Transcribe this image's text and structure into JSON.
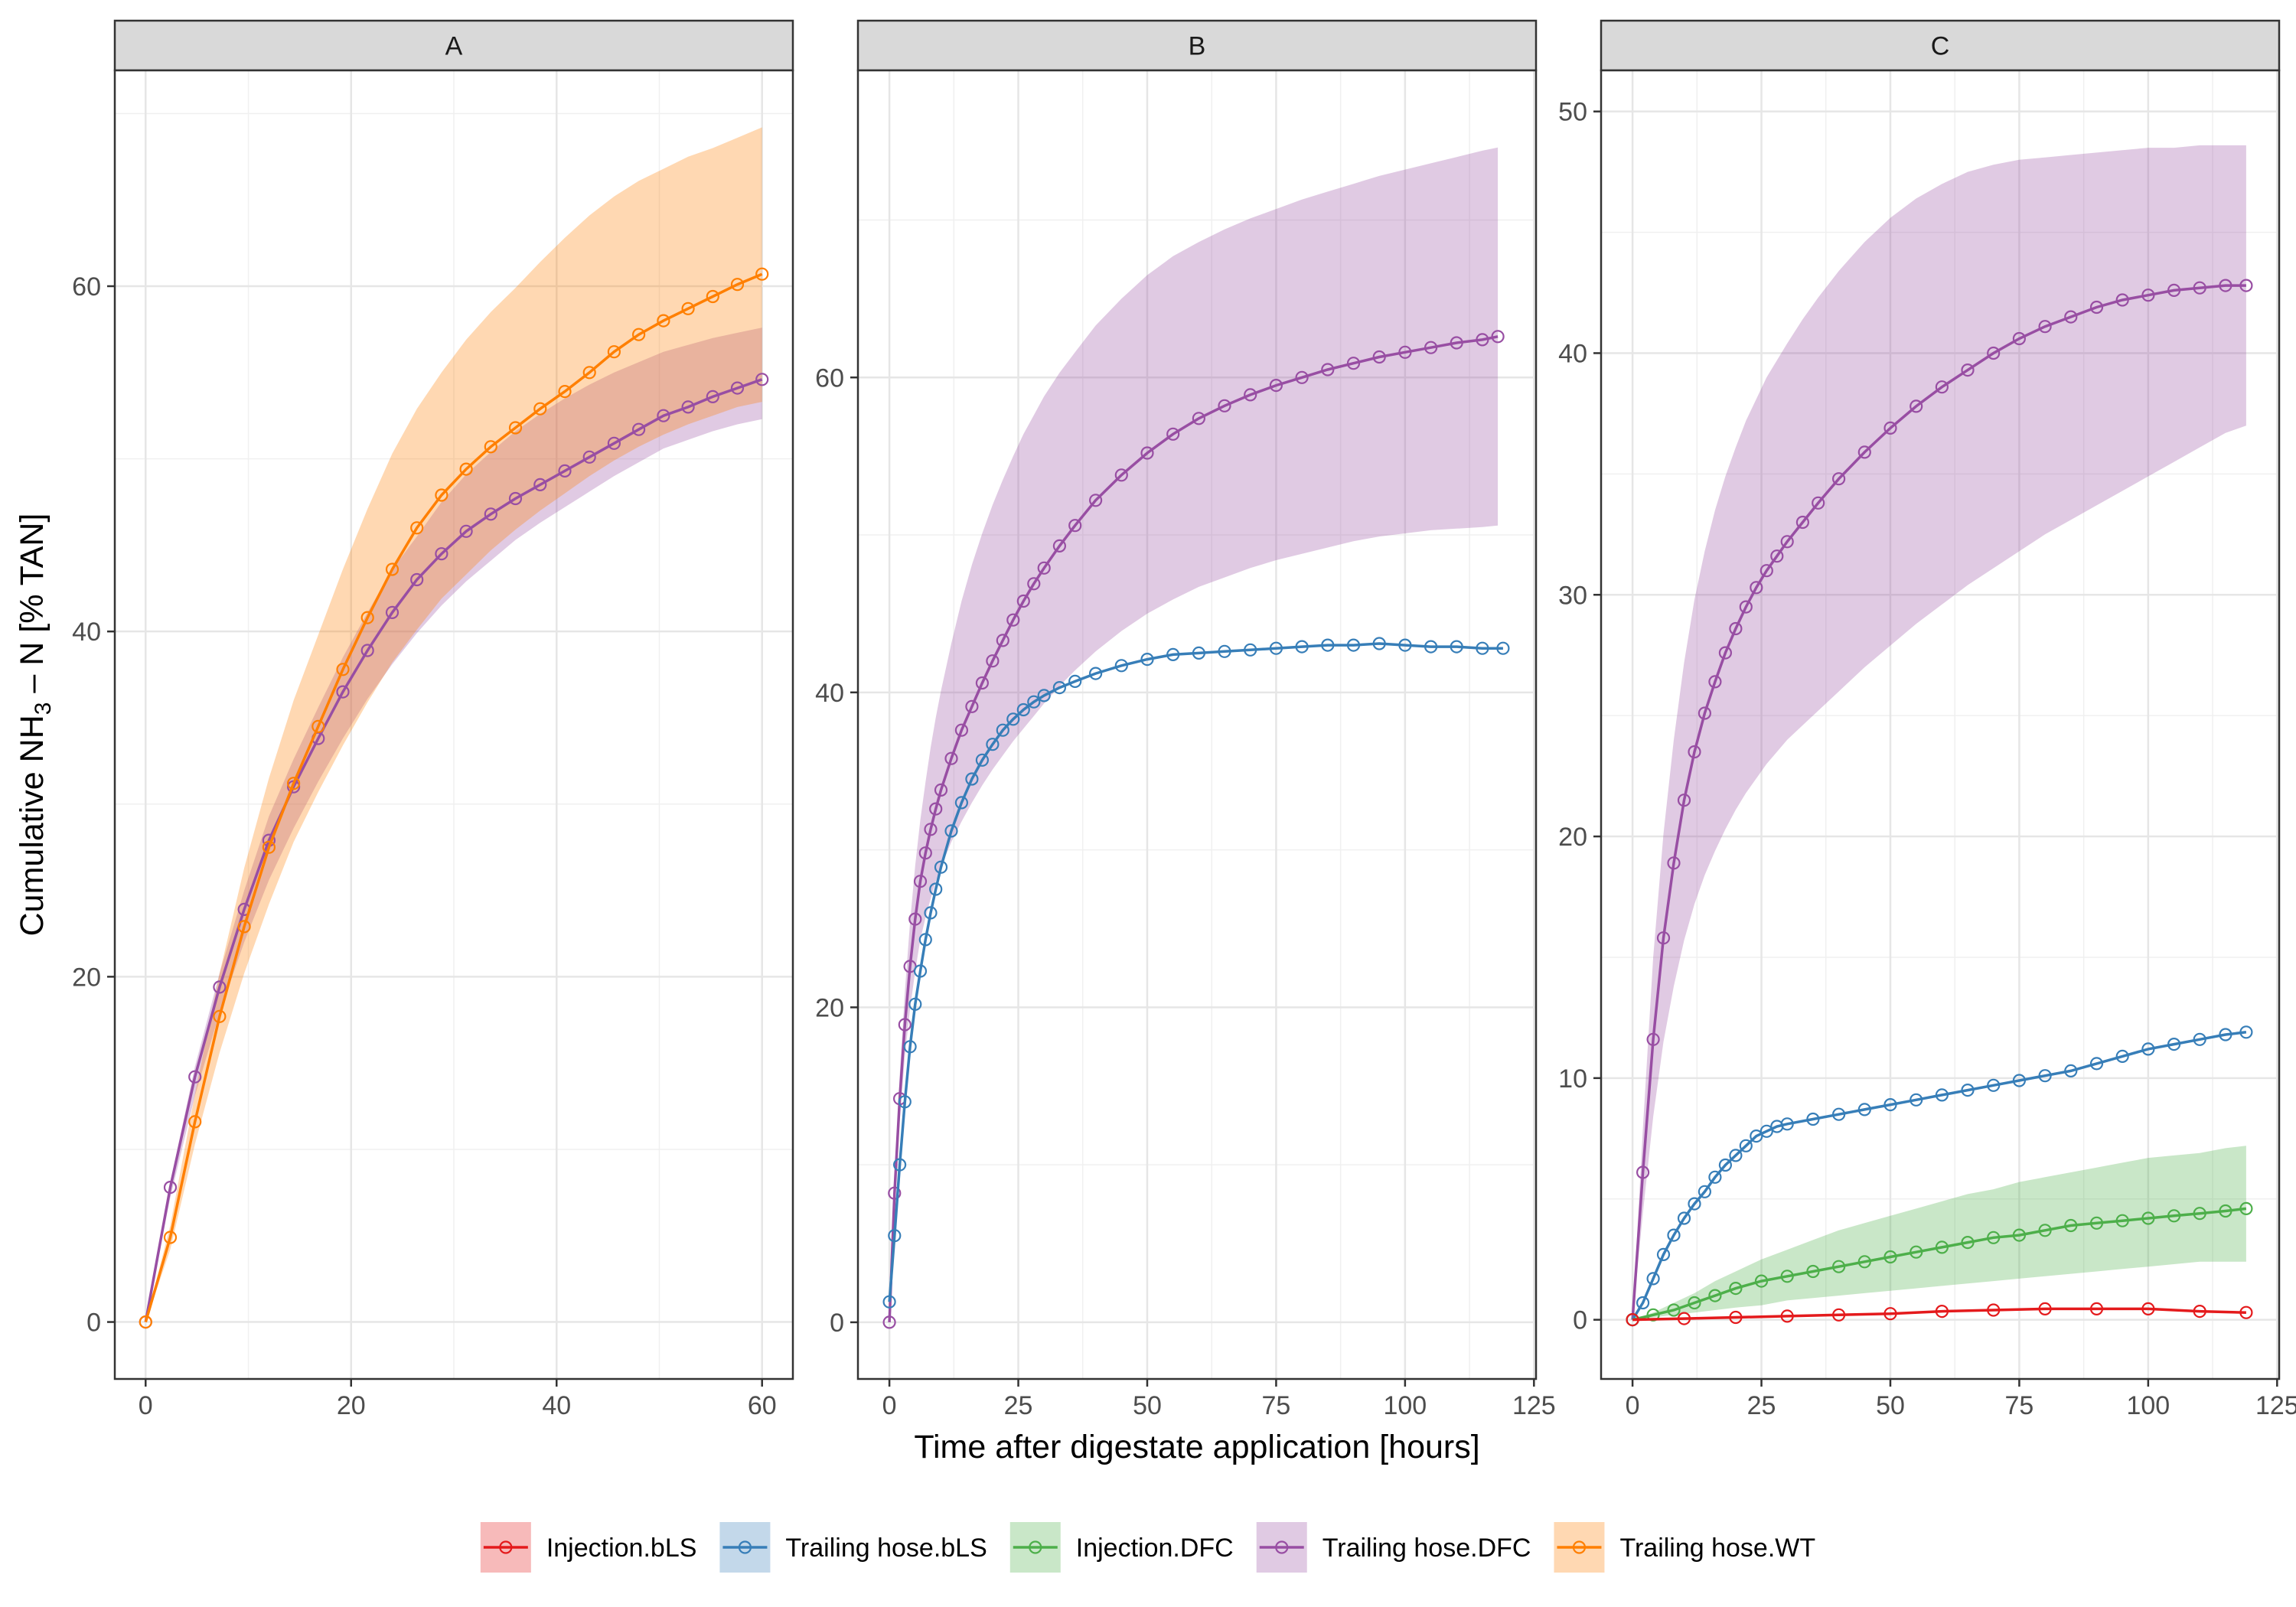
{
  "chart_data": {
    "type": "line",
    "xlabel": "Time after digestate application [hours]",
    "ylabel": {
      "prefix": "Cumulative  NH",
      "subscript": "3",
      "suffix": " – N  [% TAN]"
    },
    "legend": {
      "position": "bottom",
      "entries": [
        "Injection.bLS",
        "Trailing hose.bLS",
        "Injection.DFC",
        "Trailing hose.DFC",
        "Trailing hose.WT"
      ]
    },
    "colors": {
      "Injection.bLS": "#e41a1c",
      "Trailing hose.bLS": "#377eb8",
      "Injection.DFC": "#4daf4a",
      "Trailing hose.DFC": "#984ea3",
      "Trailing hose.WT": "#ff7f00"
    },
    "grid": true,
    "panels": [
      {
        "label": "A",
        "xlim": [
          -3,
          63
        ],
        "ylim": [
          -3.3,
          72.5
        ],
        "xticks": [
          0,
          20,
          40,
          60
        ],
        "yticks": [
          0,
          20,
          40,
          60
        ],
        "series": [
          {
            "name": "Trailing hose.DFC",
            "x": [
              0,
              2.4,
              4.8,
              7.2,
              9.6,
              12,
              14.4,
              16.8,
              19.2,
              21.6,
              24,
              26.4,
              28.8,
              31.2,
              33.6,
              36,
              38.4,
              40.8,
              43.2,
              45.6,
              48,
              50.4,
              52.8,
              55.2,
              57.6,
              60
            ],
            "y": [
              0,
              7.8,
              14.2,
              19.4,
              23.9,
              27.9,
              31.0,
              33.8,
              36.5,
              38.9,
              41.1,
              43.0,
              44.5,
              45.8,
              46.8,
              47.7,
              48.5,
              49.3,
              50.1,
              50.9,
              51.7,
              52.5,
              53.0,
              53.6,
              54.1,
              54.6
            ],
            "band_lower": [
              0,
              7.2,
              13.1,
              17.9,
              22.0,
              25.6,
              28.6,
              31.3,
              33.8,
              36.1,
              38.1,
              39.9,
              41.5,
              42.9,
              44.1,
              45.3,
              46.3,
              47.2,
              48.1,
              49.0,
              49.8,
              50.6,
              51.1,
              51.6,
              52.0,
              52.3
            ],
            "band_upper": [
              0,
              8.1,
              14.8,
              20.2,
              25.0,
              29.3,
              32.6,
              35.6,
              38.5,
              41.1,
              43.6,
              45.5,
              47.5,
              49.1,
              50.4,
              51.6,
              52.6,
              53.5,
              54.3,
              55.0,
              55.6,
              56.2,
              56.6,
              57.0,
              57.3,
              57.6
            ]
          },
          {
            "name": "Trailing hose.WT",
            "x": [
              0,
              2.4,
              4.8,
              7.2,
              9.6,
              12,
              14.4,
              16.8,
              19.2,
              21.6,
              24,
              26.4,
              28.8,
              31.2,
              33.6,
              36,
              38.4,
              40.8,
              43.2,
              45.6,
              48,
              50.4,
              52.8,
              55.2,
              57.6,
              60
            ],
            "y": [
              0,
              4.9,
              11.6,
              17.7,
              22.9,
              27.5,
              31.2,
              34.5,
              37.8,
              40.8,
              43.6,
              46.0,
              47.9,
              49.4,
              50.7,
              51.8,
              52.9,
              53.9,
              55.0,
              56.2,
              57.2,
              58.0,
              58.7,
              59.4,
              60.1,
              60.7
            ],
            "band_lower": [
              0,
              4.2,
              10.3,
              15.6,
              20.2,
              24.2,
              27.8,
              30.7,
              33.4,
              35.9,
              38.2,
              40.1,
              41.9,
              43.3,
              44.7,
              45.9,
              47.0,
              48.0,
              49.0,
              49.9,
              50.7,
              51.4,
              52.0,
              52.5,
              53.0,
              53.3
            ],
            "band_upper": [
              0,
              5.6,
              13.2,
              20.2,
              26.3,
              31.5,
              36.0,
              39.8,
              43.6,
              47.1,
              50.3,
              52.9,
              55.0,
              56.9,
              58.5,
              59.9,
              61.4,
              62.8,
              64.1,
              65.2,
              66.1,
              66.8,
              67.5,
              68.0,
              68.6,
              69.2
            ]
          }
        ]
      },
      {
        "label": "B",
        "xlim": [
          -6.1,
          125.4
        ],
        "ylim": [
          -3.6,
          79.5
        ],
        "xticks": [
          0,
          25,
          50,
          75,
          100,
          125
        ],
        "yticks": [
          0,
          20,
          40,
          60
        ],
        "series": [
          {
            "name": "Trailing hose.DFC",
            "x": [
              0,
              1,
              2,
              3,
              4,
              5,
              6,
              7,
              8,
              9,
              10,
              12,
              14,
              16,
              18,
              20,
              22,
              24,
              26,
              28,
              30,
              33,
              36,
              40,
              45,
              50,
              55,
              60,
              65,
              70,
              75,
              80,
              85,
              90,
              95,
              100,
              105,
              110,
              115,
              118
            ],
            "y": [
              0,
              8.2,
              14.2,
              18.9,
              22.6,
              25.6,
              28.0,
              29.8,
              31.3,
              32.6,
              33.8,
              35.8,
              37.6,
              39.1,
              40.6,
              42.0,
              43.3,
              44.6,
              45.8,
              46.9,
              47.9,
              49.3,
              50.6,
              52.2,
              53.8,
              55.2,
              56.4,
              57.4,
              58.2,
              58.9,
              59.5,
              60.0,
              60.5,
              60.9,
              61.3,
              61.6,
              61.9,
              62.2,
              62.4,
              62.6
            ],
            "band_lower": [
              0,
              7.4,
              12.8,
              16.9,
              19.9,
              22.3,
              24.3,
              25.7,
              26.9,
              28.0,
              28.9,
              30.5,
              31.8,
              33.0,
              34.1,
              35.1,
              36.0,
              36.9,
              37.7,
              38.5,
              39.3,
              40.4,
              41.4,
              42.6,
              43.9,
              45.0,
              45.9,
              46.7,
              47.3,
              47.9,
              48.4,
              48.8,
              49.2,
              49.6,
              49.9,
              50.1,
              50.3,
              50.4,
              50.5,
              50.6
            ],
            "band_upper": [
              0,
              9.0,
              15.7,
              21.0,
              25.4,
              29.0,
              31.9,
              34.3,
              36.5,
              38.4,
              40.1,
              43.1,
              45.8,
              48.1,
              50.1,
              51.9,
              53.5,
              55.0,
              56.4,
              57.6,
              58.8,
              60.3,
              61.6,
              63.3,
              65.0,
              66.5,
              67.7,
              68.6,
              69.4,
              70.1,
              70.7,
              71.3,
              71.8,
              72.3,
              72.8,
              73.2,
              73.6,
              74.0,
              74.4,
              74.6
            ]
          },
          {
            "name": "Trailing hose.bLS",
            "x": [
              0,
              1,
              2,
              3,
              4,
              5,
              6,
              7,
              8,
              9,
              10,
              12,
              14,
              16,
              18,
              20,
              22,
              24,
              26,
              28,
              30,
              33,
              36,
              40,
              45,
              50,
              55,
              60,
              65,
              70,
              75,
              80,
              85,
              90,
              95,
              100,
              105,
              110,
              115,
              119
            ],
            "y": [
              1.3,
              5.5,
              10.0,
              14.0,
              17.5,
              20.2,
              22.3,
              24.3,
              26.0,
              27.5,
              28.9,
              31.2,
              33.0,
              34.5,
              35.7,
              36.7,
              37.6,
              38.3,
              38.9,
              39.4,
              39.8,
              40.3,
              40.7,
              41.2,
              41.7,
              42.1,
              42.4,
              42.5,
              42.6,
              42.7,
              42.8,
              42.9,
              43.0,
              43.0,
              43.1,
              43.0,
              42.9,
              42.9,
              42.8,
              42.8
            ]
          }
        ]
      },
      {
        "label": "C",
        "xlim": [
          -6.1,
          125.4
        ],
        "ylim": [
          -2.45,
          51.7
        ],
        "xticks": [
          0,
          25,
          50,
          75,
          100,
          125
        ],
        "yticks": [
          0,
          10,
          20,
          30,
          40,
          50
        ],
        "series": [
          {
            "name": "Trailing hose.DFC",
            "x": [
              0,
              2,
              4,
              6,
              8,
              10,
              12,
              14,
              16,
              18,
              20,
              22,
              24,
              26,
              28,
              30,
              33,
              36,
              40,
              45,
              50,
              55,
              60,
              65,
              70,
              75,
              80,
              85,
              90,
              95,
              100,
              105,
              110,
              115,
              119
            ],
            "y": [
              0,
              6.1,
              11.6,
              15.8,
              18.9,
              21.5,
              23.5,
              25.1,
              26.4,
              27.6,
              28.6,
              29.5,
              30.3,
              31.0,
              31.6,
              32.2,
              33.0,
              33.8,
              34.8,
              35.9,
              36.9,
              37.8,
              38.6,
              39.3,
              40.0,
              40.6,
              41.1,
              41.5,
              41.9,
              42.2,
              42.4,
              42.6,
              42.7,
              42.8,
              42.8
            ],
            "band_lower": [
              0,
              4.4,
              8.4,
              11.5,
              13.8,
              15.7,
              17.2,
              18.4,
              19.4,
              20.3,
              21.1,
              21.8,
              22.4,
              23.0,
              23.5,
              24.0,
              24.6,
              25.2,
              26.0,
              27.0,
              27.9,
              28.8,
              29.6,
              30.4,
              31.1,
              31.8,
              32.5,
              33.1,
              33.7,
              34.3,
              34.9,
              35.5,
              36.1,
              36.7,
              37.0
            ],
            "band_upper": [
              0,
              7.9,
              15.0,
              20.1,
              24.0,
              27.2,
              29.8,
              31.8,
              33.5,
              34.9,
              36.1,
              37.2,
              38.1,
              39.0,
              39.7,
              40.4,
              41.4,
              42.3,
              43.4,
              44.6,
              45.6,
              46.4,
              47.0,
              47.5,
              47.8,
              48.0,
              48.1,
              48.2,
              48.3,
              48.4,
              48.5,
              48.5,
              48.6,
              48.6,
              48.6
            ]
          },
          {
            "name": "Trailing hose.bLS",
            "x": [
              0,
              2,
              4,
              6,
              8,
              10,
              12,
              14,
              16,
              18,
              20,
              22,
              24,
              26,
              28,
              30,
              35,
              40,
              45,
              50,
              55,
              60,
              65,
              70,
              75,
              80,
              85,
              90,
              95,
              100,
              105,
              110,
              115,
              119
            ],
            "y": [
              0,
              0.7,
              1.7,
              2.7,
              3.5,
              4.2,
              4.8,
              5.3,
              5.9,
              6.4,
              6.8,
              7.2,
              7.6,
              7.8,
              8.0,
              8.1,
              8.3,
              8.5,
              8.7,
              8.9,
              9.1,
              9.3,
              9.5,
              9.7,
              9.9,
              10.1,
              10.3,
              10.6,
              10.9,
              11.2,
              11.4,
              11.6,
              11.8,
              11.9
            ]
          },
          {
            "name": "Injection.DFC",
            "x": [
              0,
              4,
              8,
              12,
              16,
              20,
              25,
              30,
              35,
              40,
              45,
              50,
              55,
              60,
              65,
              70,
              75,
              80,
              85,
              90,
              95,
              100,
              105,
              110,
              115,
              119
            ],
            "y": [
              0,
              0.2,
              0.4,
              0.7,
              1.0,
              1.3,
              1.6,
              1.8,
              2.0,
              2.2,
              2.4,
              2.6,
              2.8,
              3.0,
              3.2,
              3.4,
              3.5,
              3.7,
              3.9,
              4.0,
              4.1,
              4.2,
              4.3,
              4.4,
              4.5,
              4.6
            ],
            "band_lower": [
              0,
              0.1,
              0.2,
              0.3,
              0.4,
              0.5,
              0.6,
              0.8,
              0.9,
              1.0,
              1.1,
              1.2,
              1.3,
              1.4,
              1.5,
              1.6,
              1.7,
              1.8,
              1.9,
              2.0,
              2.1,
              2.2,
              2.3,
              2.4,
              2.4,
              2.4
            ],
            "band_upper": [
              0,
              0.3,
              0.7,
              1.1,
              1.6,
              2.0,
              2.5,
              2.9,
              3.3,
              3.7,
              4.0,
              4.3,
              4.6,
              4.9,
              5.2,
              5.4,
              5.7,
              5.9,
              6.1,
              6.3,
              6.5,
              6.7,
              6.8,
              6.9,
              7.1,
              7.2
            ]
          },
          {
            "name": "Injection.bLS",
            "x": [
              0,
              10,
              20,
              30,
              40,
              50,
              60,
              70,
              80,
              90,
              100,
              110,
              119
            ],
            "y": [
              0,
              0.05,
              0.1,
              0.15,
              0.2,
              0.25,
              0.35,
              0.4,
              0.45,
              0.45,
              0.45,
              0.35,
              0.3
            ]
          }
        ]
      }
    ]
  }
}
